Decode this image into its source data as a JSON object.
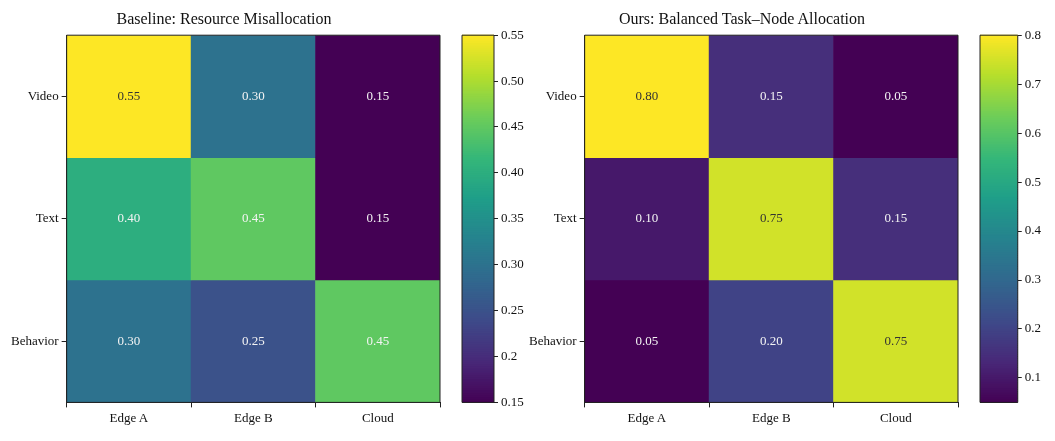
{
  "chart_data": [
    {
      "type": "heatmap",
      "title": "Baseline: Resource Misallocation",
      "categories": [
        "Edge A",
        "Edge B",
        "Cloud"
      ],
      "y_categories": [
        "Video",
        "Text",
        "Behavior"
      ],
      "cells": [
        [
          0.55,
          0.3,
          0.15
        ],
        [
          0.4,
          0.45,
          0.15
        ],
        [
          0.3,
          0.25,
          0.45
        ]
      ],
      "cell_labels": [
        [
          "0.55",
          "0.30",
          "0.15"
        ],
        [
          "0.40",
          "0.45",
          "0.15"
        ],
        [
          "0.30",
          "0.25",
          "0.45"
        ]
      ],
      "clim": [
        0.15,
        0.55
      ],
      "cticks": [
        {
          "value": 0.15,
          "label": "0.15"
        },
        0.2,
        0.25,
        {
          "value": 0.3,
          "label": "0.30"
        },
        0.35,
        {
          "value": 0.4,
          "label": "0.40"
        },
        0.45,
        {
          "value": 0.5,
          "label": "0.50"
        },
        0.55
      ]
    },
    {
      "type": "heatmap",
      "title": "Ours: Balanced Task–Node Allocation",
      "categories": [
        "Edge A",
        "Edge B",
        "Cloud"
      ],
      "y_categories": [
        "Video",
        "Text",
        "Behavior"
      ],
      "cells": [
        [
          0.8,
          0.15,
          0.05
        ],
        [
          0.1,
          0.75,
          0.15
        ],
        [
          0.05,
          0.2,
          0.75
        ]
      ],
      "cell_labels": [
        [
          "0.80",
          "0.15",
          "0.05"
        ],
        [
          "0.10",
          "0.75",
          "0.15"
        ],
        [
          "0.05",
          "0.20",
          "0.75"
        ]
      ],
      "clim": [
        0.05,
        0.8
      ],
      "cticks": [
        0.1,
        0.2,
        0.3,
        0.4,
        0.5,
        0.6,
        0.7,
        0.8
      ]
    }
  ]
}
